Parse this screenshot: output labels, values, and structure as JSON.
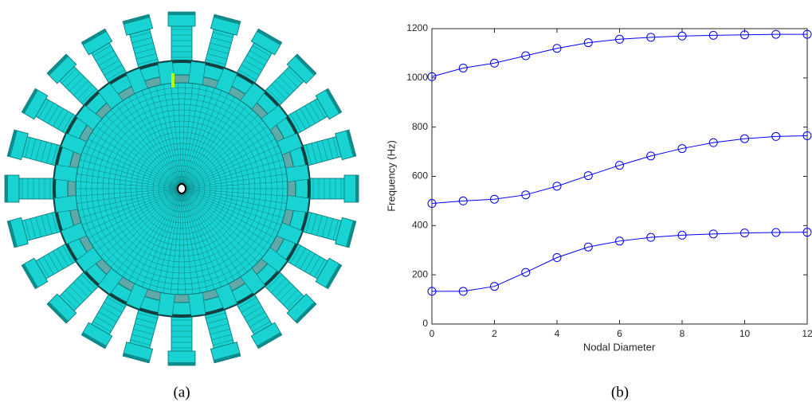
{
  "figure": {
    "left_caption": "(a)",
    "right_caption": "(b)"
  },
  "chart_data": {
    "type": "line",
    "xlabel": "Nodal Diameter",
    "ylabel": "Frequency (Hz)",
    "x": [
      0,
      1,
      2,
      3,
      4,
      5,
      6,
      7,
      8,
      9,
      10,
      11,
      12
    ],
    "series": [
      {
        "color": "#0000ff",
        "values": [
          1005,
          1040,
          1060,
          1090,
          1120,
          1143,
          1157,
          1165,
          1170,
          1173,
          1175,
          1177,
          1177
        ]
      },
      {
        "color": "#0000ff",
        "values": [
          490,
          500,
          507,
          525,
          560,
          603,
          645,
          683,
          713,
          737,
          753,
          762,
          765
        ]
      },
      {
        "color": "#0000ff",
        "values": [
          133,
          133,
          153,
          210,
          270,
          313,
          337,
          352,
          361,
          366,
          370,
          372,
          373
        ]
      }
    ],
    "marker": "circle",
    "xlim": [
      0,
      12
    ],
    "xticks": [
      0,
      2,
      4,
      6,
      8,
      10,
      12
    ],
    "ylim": [
      0,
      1200
    ],
    "yticks": [
      0,
      200,
      400,
      600,
      800,
      1000,
      1200
    ]
  }
}
